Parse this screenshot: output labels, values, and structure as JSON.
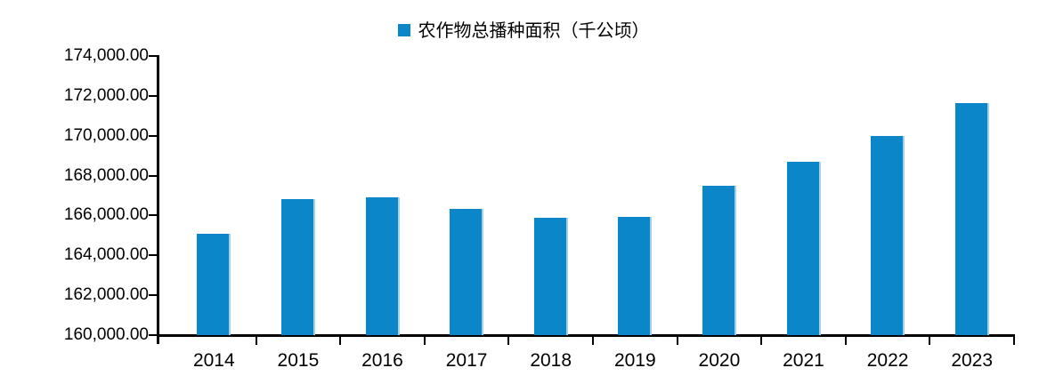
{
  "chart_data": {
    "type": "bar",
    "title": "",
    "legend": {
      "position": "top-center",
      "label": "农作物总播种面积（千公顷）"
    },
    "categories": [
      "2014",
      "2015",
      "2016",
      "2017",
      "2018",
      "2019",
      "2020",
      "2021",
      "2022",
      "2023"
    ],
    "series": [
      {
        "name": "农作物总播种面积（千公顷）",
        "values": [
          165100,
          166830,
          166900,
          166330,
          165900,
          165930,
          167500,
          168700,
          170000,
          171630
        ]
      }
    ],
    "xlabel": "",
    "ylabel": "",
    "ylim": [
      160000,
      174000
    ],
    "ytick_step": 2000,
    "ytick_labels": [
      "160,000.00",
      "162,000.00",
      "164,000.00",
      "166,000.00",
      "168,000.00",
      "170,000.00",
      "172,000.00",
      "174,000.00"
    ],
    "grid": false,
    "bar_color": "#0b86c8",
    "bar_edge_color": "#a5d0ec",
    "axis_color": "#000000",
    "text_color": "#000000",
    "background_color": "#ffffff"
  }
}
